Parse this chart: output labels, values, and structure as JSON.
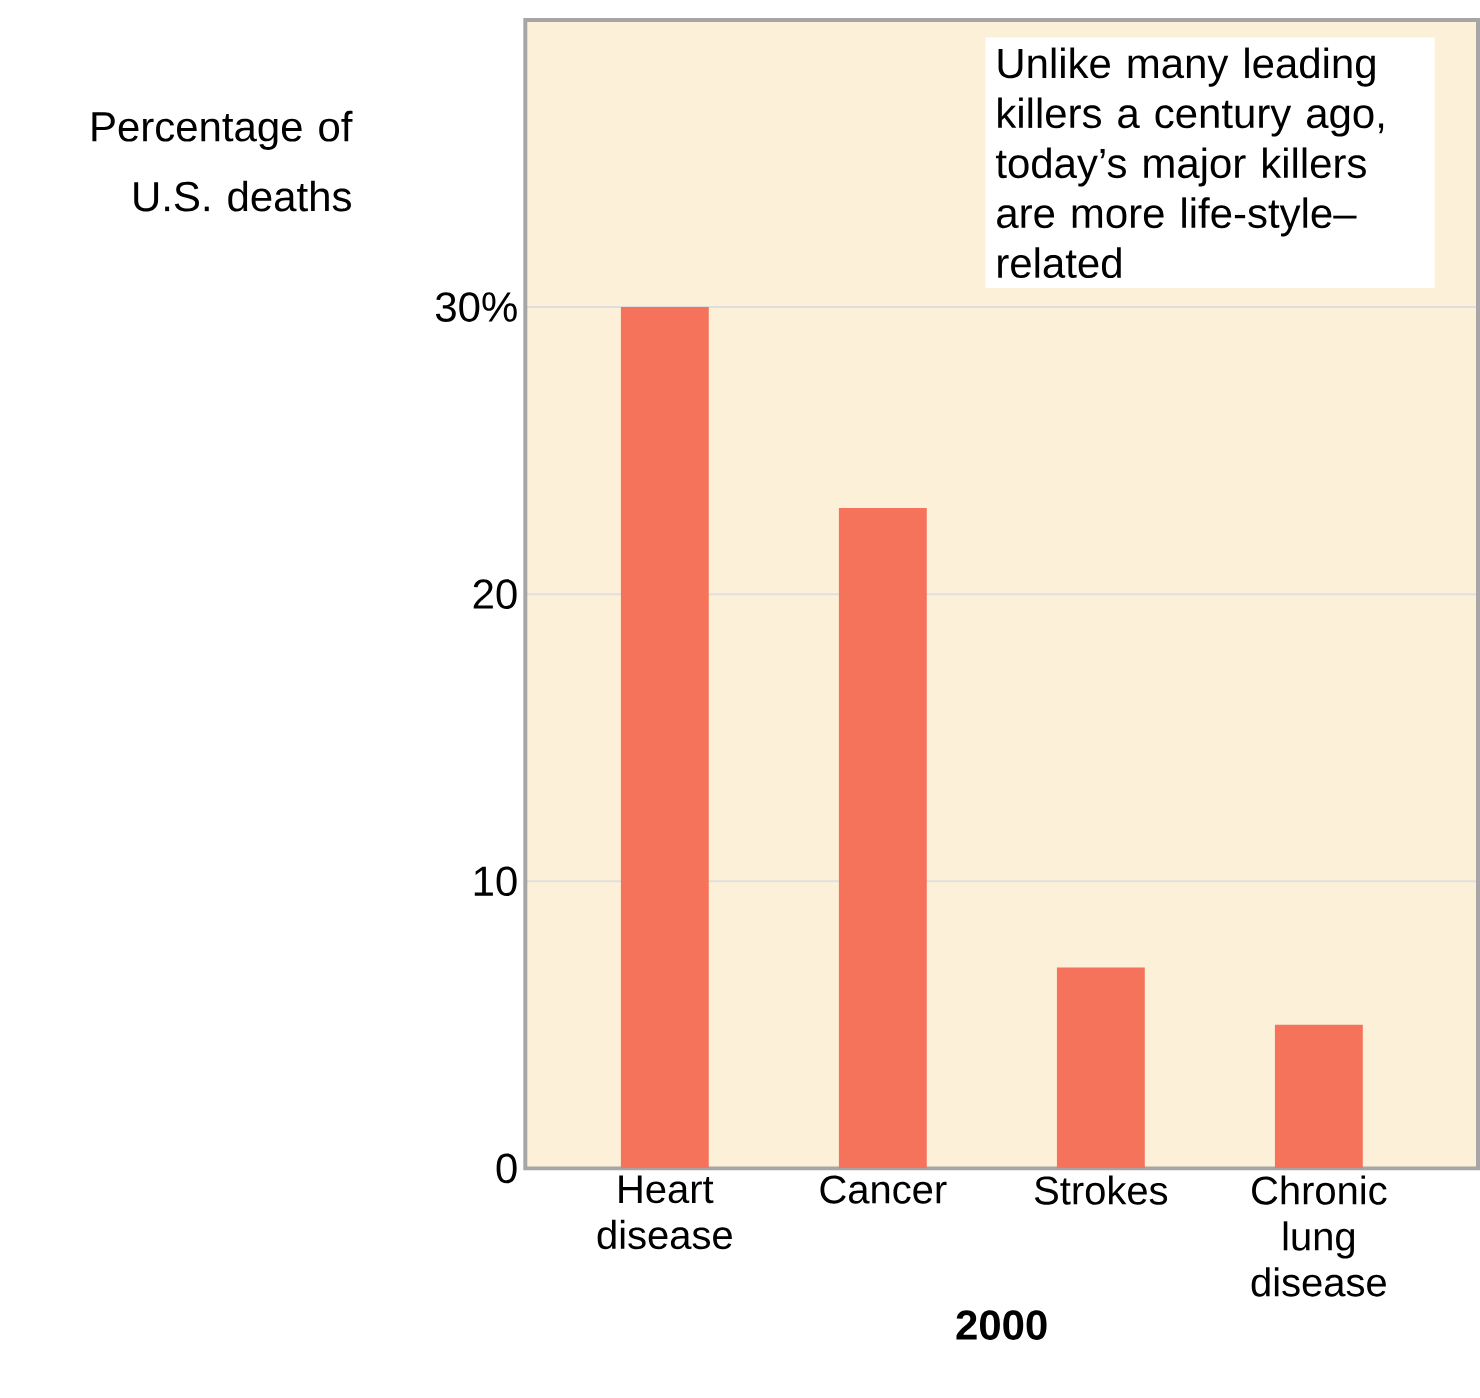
{
  "chart_data": {
    "type": "bar",
    "categories": [
      "Heart disease",
      "Cancer",
      "Strokes",
      "Chronic lung disease"
    ],
    "values": [
      30,
      23,
      7,
      5
    ],
    "color": "#f4735a",
    "ylabel": "Percentage of U.S. deaths",
    "xlabel": "2000",
    "ylim": [
      0,
      40
    ],
    "yticks": [
      0,
      10,
      20,
      {
        "value": 30,
        "label": "30%"
      }
    ],
    "grid": "y",
    "annotations": [
      "Unlike many leading killers a century ago, today’s major killers are more life-style–related"
    ]
  }
}
